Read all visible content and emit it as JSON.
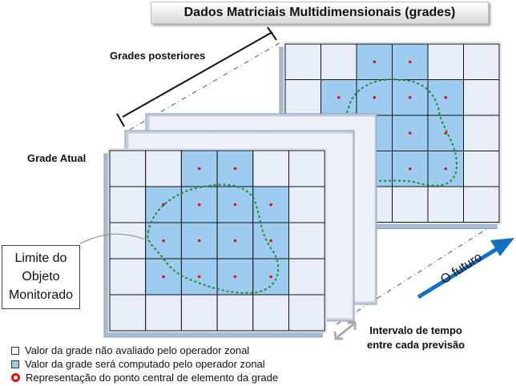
{
  "title": "Dados Matriciais Multidimensionais (grades)",
  "labels": {
    "posterior": "Grades posteriores",
    "current": "Grade Atual",
    "interval_line1": "Intervalo de tempo",
    "interval_line2": "entre cada previsão",
    "future": "O  futuro"
  },
  "callout": {
    "line1": "Limite do",
    "line2": "Objeto",
    "line3": "Monitorado"
  },
  "legend": [
    {
      "icon": "empty-cell-swatch",
      "text": "Valor da grade não avaliado pelo operador zonal"
    },
    {
      "icon": "blue-cell-swatch",
      "text": "Valor da grade será computado pelo operador zonal"
    },
    {
      "icon": "red-dot-swatch",
      "text": "Representação do ponto central de elemento da grade"
    }
  ],
  "grid": {
    "rows": 5,
    "cols": 6,
    "blue_cells": [
      [
        0,
        2
      ],
      [
        0,
        3
      ],
      [
        1,
        1
      ],
      [
        1,
        2
      ],
      [
        1,
        3
      ],
      [
        1,
        4
      ],
      [
        2,
        1
      ],
      [
        2,
        2
      ],
      [
        2,
        3
      ],
      [
        2,
        4
      ],
      [
        3,
        1
      ],
      [
        3,
        2
      ],
      [
        3,
        3
      ],
      [
        3,
        4
      ]
    ]
  },
  "colors": {
    "cell": "#e8eef7",
    "blue": "#9ecbf0",
    "dot": "#e01010",
    "contour": "#1f8a2a",
    "arrow": "#1470c4"
  }
}
